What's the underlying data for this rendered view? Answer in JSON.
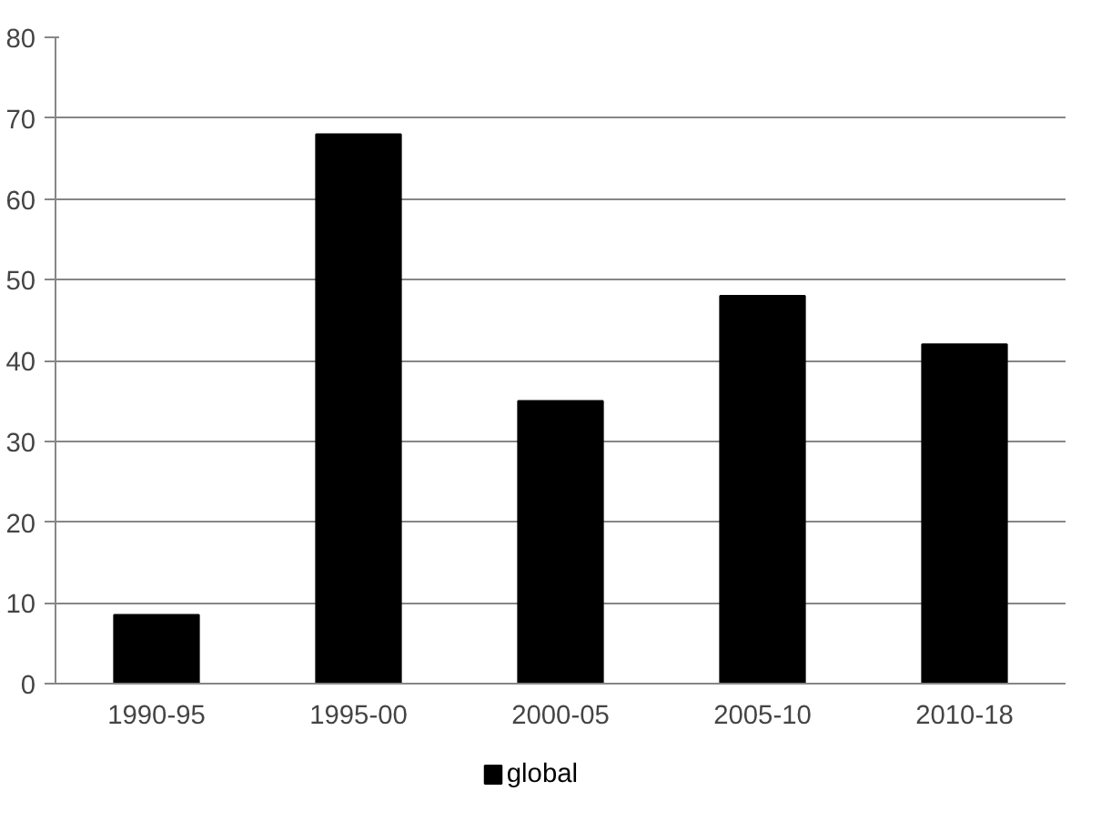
{
  "chart_data": {
    "type": "bar",
    "categories": [
      "1990-95",
      "1995-00",
      "2000-05",
      "2005-10",
      "2010-18"
    ],
    "series": [
      {
        "name": "global",
        "color": "#000000",
        "values": [
          8.5,
          68,
          35,
          48,
          42
        ]
      }
    ],
    "ylim": [
      0,
      80
    ],
    "yticks": [
      0,
      10,
      20,
      30,
      40,
      50,
      60,
      70,
      80
    ],
    "grid": "y",
    "legend": "bottom"
  }
}
